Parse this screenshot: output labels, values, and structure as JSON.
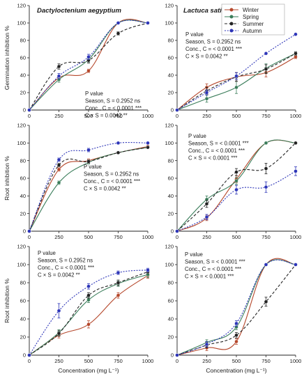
{
  "colors": {
    "Winter": "#b5472b",
    "Spring": "#3a7d5a",
    "Summer": "#222222",
    "Autumn": "#2d35b8"
  },
  "legend": [
    "Winter",
    "Spring",
    "Summer",
    "Autumn"
  ],
  "chart_data": [
    {
      "type": "line",
      "species": "Dactyloctenium aegyptium",
      "ylabel": "Germination inhibition %",
      "xlabel": "",
      "x": [
        0,
        250,
        500,
        750,
        1000
      ],
      "xlim": [
        0,
        1000
      ],
      "ylim": [
        0,
        120
      ],
      "yticks": [
        0,
        20,
        40,
        60,
        80,
        100,
        120
      ],
      "xticks": [
        0,
        250,
        500,
        750,
        1000
      ],
      "series": [
        {
          "name": "Winter",
          "values": [
            0,
            37,
            45,
            100,
            100
          ],
          "err": [
            0,
            3,
            2,
            0,
            0
          ]
        },
        {
          "name": "Spring",
          "values": [
            0,
            35,
            58,
            100,
            100
          ],
          "err": [
            0,
            3,
            3,
            0,
            0
          ]
        },
        {
          "name": "Summer",
          "values": [
            0,
            50,
            57,
            88,
            100
          ],
          "err": [
            0,
            3,
            3,
            2,
            0
          ]
        },
        {
          "name": "Autumn",
          "values": [
            0,
            39,
            61,
            100,
            100
          ],
          "err": [
            0,
            3,
            3,
            0,
            0
          ]
        }
      ],
      "pvalue": [
        "P value",
        "Season, S = 0.2952 ns",
        "Conc., C = < 0.0001 ***",
        "C × S = 0.0042 **"
      ]
    },
    {
      "type": "line",
      "species": "Lactuca sativa",
      "ylabel": "",
      "xlabel": "",
      "x": [
        0,
        250,
        500,
        750,
        1000
      ],
      "xlim": [
        0,
        1000
      ],
      "ylim": [
        0,
        120
      ],
      "yticks": [
        0,
        20,
        40,
        60,
        80,
        100,
        120
      ],
      "xticks": [
        0,
        250,
        500,
        750,
        1000
      ],
      "series": [
        {
          "name": "Winter",
          "values": [
            0,
            26,
            38,
            43,
            61
          ],
          "err": [
            0,
            4,
            5,
            5,
            2
          ]
        },
        {
          "name": "Spring",
          "values": [
            0,
            13,
            26,
            48,
            65
          ],
          "err": [
            0,
            4,
            7,
            5,
            2
          ]
        },
        {
          "name": "Summer",
          "values": [
            0,
            22,
            38,
            47,
            65
          ],
          "err": [
            0,
            4,
            5,
            5,
            2
          ]
        },
        {
          "name": "Autumn",
          "values": [
            0,
            20,
            39,
            65,
            87
          ],
          "err": [
            0,
            3,
            4,
            0,
            0
          ]
        }
      ],
      "pvalue": [
        "P value",
        "Season, S = 0.2952 ns",
        "Conc., C = < 0.0001 ***",
        "C × S = 0.0042 **"
      ]
    },
    {
      "type": "line",
      "species": "",
      "ylabel": "Root inhibition %",
      "xlabel": "",
      "x": [
        0,
        250,
        500,
        750,
        1000
      ],
      "xlim": [
        0,
        1000
      ],
      "ylim": [
        0,
        120
      ],
      "yticks": [
        0,
        20,
        40,
        60,
        80,
        100,
        120
      ],
      "xticks": [
        0,
        250,
        500,
        750,
        1000
      ],
      "series": [
        {
          "name": "Winter",
          "values": [
            0,
            70,
            80,
            89,
            96
          ],
          "err": [
            0,
            2,
            2,
            1,
            1
          ]
        },
        {
          "name": "Spring",
          "values": [
            0,
            55,
            78,
            89,
            95
          ],
          "err": [
            0,
            2,
            2,
            1,
            1
          ]
        },
        {
          "name": "Summer",
          "values": [
            0,
            75,
            79,
            89,
            95
          ],
          "err": [
            0,
            2,
            2,
            1,
            1
          ]
        },
        {
          "name": "Autumn",
          "values": [
            0,
            81,
            92,
            100,
            100
          ],
          "err": [
            0,
            2,
            2,
            0,
            0
          ]
        }
      ],
      "pvalue": [
        "P value",
        "Season, S = 0.2952 ns",
        "Conc., C = < 0.0001 ***",
        "C × S = 0.0042 **"
      ]
    },
    {
      "type": "line",
      "species": "",
      "ylabel": "",
      "xlabel": "",
      "x": [
        0,
        250,
        500,
        750,
        1000
      ],
      "xlim": [
        0,
        1000
      ],
      "ylim": [
        0,
        120
      ],
      "yticks": [
        0,
        20,
        40,
        60,
        80,
        100,
        120
      ],
      "xticks": [
        0,
        250,
        500,
        750,
        1000
      ],
      "series": [
        {
          "name": "Winter",
          "values": [
            0,
            15,
            59,
            100,
            100
          ],
          "err": [
            0,
            3,
            4,
            0,
            0
          ]
        },
        {
          "name": "Spring",
          "values": [
            0,
            36,
            57,
            100,
            100
          ],
          "err": [
            0,
            4,
            4,
            0,
            0
          ]
        },
        {
          "name": "Summer",
          "values": [
            0,
            31,
            67,
            71,
            100
          ],
          "err": [
            0,
            4,
            4,
            6,
            0
          ]
        },
        {
          "name": "Autumn",
          "values": [
            0,
            16,
            47,
            50,
            68
          ],
          "err": [
            0,
            3,
            5,
            6,
            5
          ]
        }
      ],
      "pvalue": [
        "P value",
        "Season, S = < 0.0001 ***",
        "Conc., C = < 0.0001 ***",
        "C × S = < 0.0001 ***"
      ]
    },
    {
      "type": "line",
      "species": "",
      "ylabel": "Root inhibition %",
      "xlabel": "Concentration (mg L⁻¹)",
      "x": [
        0,
        250,
        500,
        750,
        1000
      ],
      "xlim": [
        0,
        1000
      ],
      "ylim": [
        0,
        120
      ],
      "yticks": [
        0,
        20,
        40,
        60,
        80,
        100,
        120
      ],
      "xticks": [
        0,
        250,
        500,
        750,
        1000
      ],
      "series": [
        {
          "name": "Winter",
          "values": [
            0,
            22,
            34,
            66,
            88
          ],
          "err": [
            0,
            3,
            4,
            3,
            3
          ]
        },
        {
          "name": "Spring",
          "values": [
            0,
            25,
            61,
            79,
            89
          ],
          "err": [
            0,
            3,
            3,
            3,
            3
          ]
        },
        {
          "name": "Summer",
          "values": [
            0,
            24,
            66,
            80,
            92
          ],
          "err": [
            0,
            3,
            3,
            3,
            2
          ]
        },
        {
          "name": "Autumn",
          "values": [
            0,
            49,
            76,
            91,
            94
          ],
          "err": [
            0,
            8,
            3,
            2,
            2
          ]
        }
      ],
      "pvalue": [
        "P value",
        "Season, S = 0.2952 ns",
        "Conc., C = < 0.0001 ***",
        "C × S = 0.0042 **"
      ]
    },
    {
      "type": "line",
      "species": "",
      "ylabel": "",
      "xlabel": "Concentration (mg L⁻¹)",
      "x": [
        0,
        250,
        500,
        750,
        1000
      ],
      "xlim": [
        0,
        1000
      ],
      "ylim": [
        0,
        120
      ],
      "yticks": [
        0,
        20,
        40,
        60,
        80,
        100,
        120
      ],
      "xticks": [
        0,
        250,
        500,
        750,
        1000
      ],
      "series": [
        {
          "name": "Winter",
          "values": [
            0,
            8,
            15,
            100,
            100
          ],
          "err": [
            0,
            3,
            3,
            0,
            0
          ]
        },
        {
          "name": "Spring",
          "values": [
            0,
            14,
            31,
            100,
            100
          ],
          "err": [
            0,
            3,
            3,
            0,
            0
          ]
        },
        {
          "name": "Summer",
          "values": [
            0,
            11,
            22,
            59,
            100
          ],
          "err": [
            0,
            3,
            3,
            5,
            0
          ]
        },
        {
          "name": "Autumn",
          "values": [
            0,
            12,
            35,
            100,
            100
          ],
          "err": [
            0,
            3,
            3,
            0,
            0
          ]
        }
      ],
      "pvalue": [
        "P value",
        "Season, S = < 0.0001 ***",
        "Conc., C = < 0.0001 ***",
        "C × S = < 0.0001 ***"
      ]
    }
  ]
}
